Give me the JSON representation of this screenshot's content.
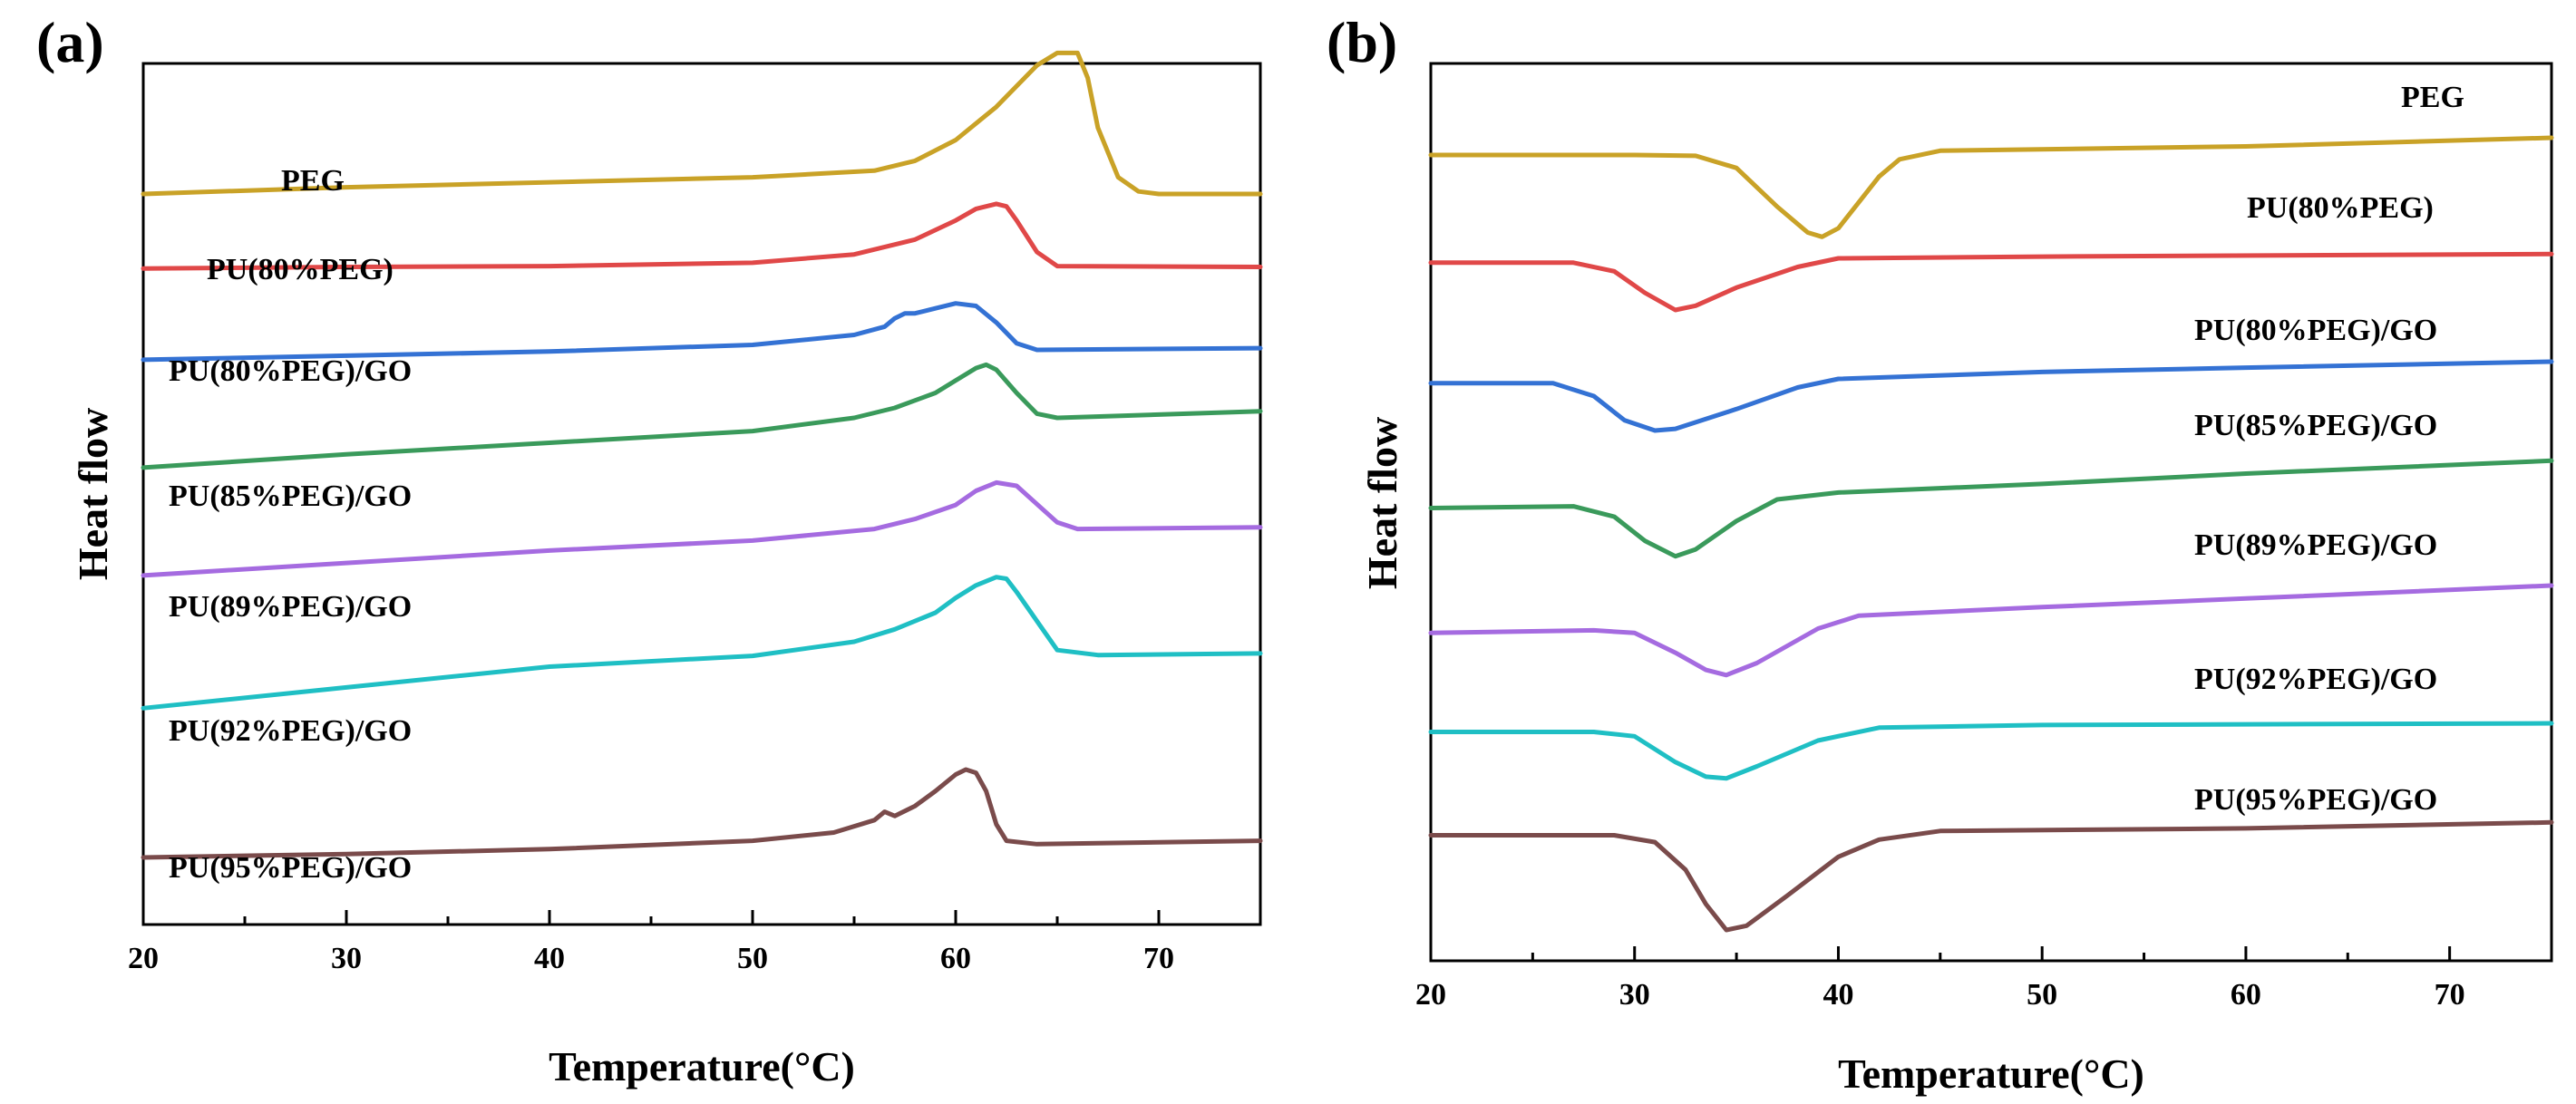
{
  "chart_data": [
    {
      "panel_label": "(a)",
      "type": "line",
      "xlabel": "Temperature(°C)",
      "ylabel": "Heat flow",
      "xlim": [
        20,
        75
      ],
      "x_ticks": [
        "20",
        "30",
        "40",
        "50",
        "60",
        "70"
      ],
      "y_ticks": [],
      "grid": false,
      "legend": "labels above each curve",
      "series": [
        {
          "name": "PEG",
          "color": "#c9a227",
          "points": [
            [
              20,
              0.87
            ],
            [
              30,
              0.878
            ],
            [
              40,
              0.884
            ],
            [
              50,
              0.89
            ],
            [
              56,
              0.898
            ],
            [
              58,
              0.91
            ],
            [
              60,
              0.935
            ],
            [
              62,
              0.975
            ],
            [
              64,
              1.025
            ],
            [
              65,
              1.04
            ],
            [
              66,
              1.04
            ],
            [
              66.5,
              1.01
            ],
            [
              67,
              0.95
            ],
            [
              68,
              0.89
            ],
            [
              69,
              0.873
            ],
            [
              70,
              0.87
            ],
            [
              75,
              0.87
            ]
          ]
        },
        {
          "name": "PU(80%PEG)",
          "color": "#e04848",
          "points": [
            [
              20,
              0.78
            ],
            [
              30,
              0.782
            ],
            [
              40,
              0.783
            ],
            [
              50,
              0.787
            ],
            [
              55,
              0.797
            ],
            [
              58,
              0.815
            ],
            [
              60,
              0.838
            ],
            [
              61,
              0.852
            ],
            [
              62,
              0.858
            ],
            [
              62.5,
              0.855
            ],
            [
              63,
              0.838
            ],
            [
              64,
              0.8
            ],
            [
              65,
              0.783
            ],
            [
              75,
              0.782
            ]
          ]
        },
        {
          "name": "PU(80%PEG)/GO",
          "color": "#3472d4",
          "points": [
            [
              20,
              0.67
            ],
            [
              30,
              0.675
            ],
            [
              40,
              0.68
            ],
            [
              50,
              0.688
            ],
            [
              55,
              0.7
            ],
            [
              56.5,
              0.71
            ],
            [
              57,
              0.72
            ],
            [
              57.5,
              0.726
            ],
            [
              58,
              0.726
            ],
            [
              59,
              0.732
            ],
            [
              60,
              0.738
            ],
            [
              61,
              0.735
            ],
            [
              62,
              0.715
            ],
            [
              63,
              0.69
            ],
            [
              64,
              0.682
            ],
            [
              75,
              0.684
            ]
          ]
        },
        {
          "name": "PU(85%PEG)/GO",
          "color": "#3a9a5b",
          "points": [
            [
              20,
              0.54
            ],
            [
              30,
              0.556
            ],
            [
              40,
              0.57
            ],
            [
              50,
              0.584
            ],
            [
              55,
              0.6
            ],
            [
              57,
              0.612
            ],
            [
              59,
              0.63
            ],
            [
              60,
              0.645
            ],
            [
              61,
              0.66
            ],
            [
              61.5,
              0.664
            ],
            [
              62,
              0.658
            ],
            [
              63,
              0.63
            ],
            [
              64,
              0.605
            ],
            [
              65,
              0.6
            ],
            [
              75,
              0.608
            ]
          ]
        },
        {
          "name": "PU(89%PEG)/GO",
          "color": "#a56be0",
          "points": [
            [
              20,
              0.41
            ],
            [
              30,
              0.425
            ],
            [
              40,
              0.44
            ],
            [
              50,
              0.452
            ],
            [
              56,
              0.466
            ],
            [
              58,
              0.478
            ],
            [
              60,
              0.495
            ],
            [
              61,
              0.512
            ],
            [
              62,
              0.522
            ],
            [
              63,
              0.518
            ],
            [
              64,
              0.496
            ],
            [
              65,
              0.474
            ],
            [
              66,
              0.466
            ],
            [
              75,
              0.468
            ]
          ]
        },
        {
          "name": "PU(92%PEG)/GO",
          "color": "#1fbfc4",
          "points": [
            [
              20,
              0.25
            ],
            [
              30,
              0.275
            ],
            [
              40,
              0.3
            ],
            [
              50,
              0.313
            ],
            [
              55,
              0.33
            ],
            [
              57,
              0.345
            ],
            [
              59,
              0.365
            ],
            [
              60,
              0.383
            ],
            [
              61,
              0.398
            ],
            [
              62,
              0.408
            ],
            [
              62.5,
              0.406
            ],
            [
              63,
              0.39
            ],
            [
              64,
              0.355
            ],
            [
              65,
              0.32
            ],
            [
              67,
              0.314
            ],
            [
              75,
              0.316
            ]
          ]
        },
        {
          "name": "PU(95%PEG)/GO",
          "color": "#7a4b4b",
          "points": [
            [
              20,
              0.07
            ],
            [
              30,
              0.074
            ],
            [
              40,
              0.08
            ],
            [
              50,
              0.09
            ],
            [
              54,
              0.1
            ],
            [
              56,
              0.115
            ],
            [
              56.5,
              0.125
            ],
            [
              57,
              0.12
            ],
            [
              58,
              0.132
            ],
            [
              59,
              0.15
            ],
            [
              60,
              0.17
            ],
            [
              60.5,
              0.176
            ],
            [
              61,
              0.172
            ],
            [
              61.5,
              0.15
            ],
            [
              62,
              0.11
            ],
            [
              62.5,
              0.09
            ],
            [
              64,
              0.086
            ],
            [
              75,
              0.09
            ]
          ]
        }
      ]
    },
    {
      "panel_label": "(b)",
      "type": "line",
      "xlabel": "Temperature(°C)",
      "ylabel": "Heat flow",
      "xlim": [
        20,
        75
      ],
      "x_ticks": [
        "20",
        "30",
        "40",
        "50",
        "60",
        "70"
      ],
      "y_ticks": [],
      "grid": false,
      "legend": "labels above each curve",
      "series": [
        {
          "name": "PEG",
          "color": "#c9a227",
          "points": [
            [
              20,
              0.92
            ],
            [
              30,
              0.92
            ],
            [
              33,
              0.919
            ],
            [
              35,
              0.905
            ],
            [
              37,
              0.86
            ],
            [
              38.5,
              0.83
            ],
            [
              39.2,
              0.825
            ],
            [
              40,
              0.835
            ],
            [
              42,
              0.895
            ],
            [
              43,
              0.915
            ],
            [
              45,
              0.925
            ],
            [
              60,
              0.93
            ],
            [
              75,
              0.94
            ]
          ]
        },
        {
          "name": "PU(80%PEG)",
          "color": "#e04848",
          "points": [
            [
              20,
              0.795
            ],
            [
              27,
              0.795
            ],
            [
              29,
              0.785
            ],
            [
              30.5,
              0.76
            ],
            [
              32,
              0.74
            ],
            [
              33,
              0.745
            ],
            [
              35,
              0.766
            ],
            [
              38,
              0.79
            ],
            [
              40,
              0.8
            ],
            [
              50,
              0.802
            ],
            [
              75,
              0.805
            ]
          ]
        },
        {
          "name": "PU(80%PEG)/GO",
          "color": "#3472d4",
          "points": [
            [
              20,
              0.655
            ],
            [
              26,
              0.655
            ],
            [
              28,
              0.64
            ],
            [
              29.5,
              0.612
            ],
            [
              31,
              0.6
            ],
            [
              32,
              0.602
            ],
            [
              35,
              0.625
            ],
            [
              38,
              0.65
            ],
            [
              40,
              0.66
            ],
            [
              50,
              0.668
            ],
            [
              60,
              0.673
            ],
            [
              75,
              0.68
            ]
          ]
        },
        {
          "name": "PU(85%PEG)/GO",
          "color": "#3a9a5b",
          "points": [
            [
              20,
              0.51
            ],
            [
              27,
              0.512
            ],
            [
              29,
              0.5
            ],
            [
              30.5,
              0.472
            ],
            [
              32,
              0.454
            ],
            [
              33,
              0.462
            ],
            [
              35,
              0.495
            ],
            [
              37,
              0.52
            ],
            [
              40,
              0.528
            ],
            [
              50,
              0.538
            ],
            [
              60,
              0.55
            ],
            [
              75,
              0.565
            ]
          ]
        },
        {
          "name": "PU(89%PEG)/GO",
          "color": "#a56be0",
          "points": [
            [
              20,
              0.365
            ],
            [
              28,
              0.368
            ],
            [
              30,
              0.365
            ],
            [
              32,
              0.342
            ],
            [
              33.5,
              0.322
            ],
            [
              34.5,
              0.316
            ],
            [
              36,
              0.33
            ],
            [
              39,
              0.37
            ],
            [
              41,
              0.385
            ],
            [
              50,
              0.395
            ],
            [
              60,
              0.405
            ],
            [
              75,
              0.42
            ]
          ]
        },
        {
          "name": "PU(92%PEG)/GO",
          "color": "#1fbfc4",
          "points": [
            [
              20,
              0.25
            ],
            [
              28,
              0.25
            ],
            [
              30,
              0.245
            ],
            [
              32,
              0.215
            ],
            [
              33.5,
              0.198
            ],
            [
              34.5,
              0.196
            ],
            [
              36,
              0.21
            ],
            [
              39,
              0.24
            ],
            [
              42,
              0.255
            ],
            [
              50,
              0.258
            ],
            [
              75,
              0.26
            ]
          ]
        },
        {
          "name": "PU(95%PEG)/GO",
          "color": "#7a4b4b",
          "points": [
            [
              20,
              0.13
            ],
            [
              29,
              0.13
            ],
            [
              31,
              0.122
            ],
            [
              32.5,
              0.09
            ],
            [
              33.5,
              0.05
            ],
            [
              34.5,
              0.02
            ],
            [
              35.5,
              0.025
            ],
            [
              37.5,
              0.06
            ],
            [
              40,
              0.105
            ],
            [
              42,
              0.125
            ],
            [
              45,
              0.135
            ],
            [
              60,
              0.138
            ],
            [
              75,
              0.145
            ]
          ]
        }
      ]
    }
  ]
}
